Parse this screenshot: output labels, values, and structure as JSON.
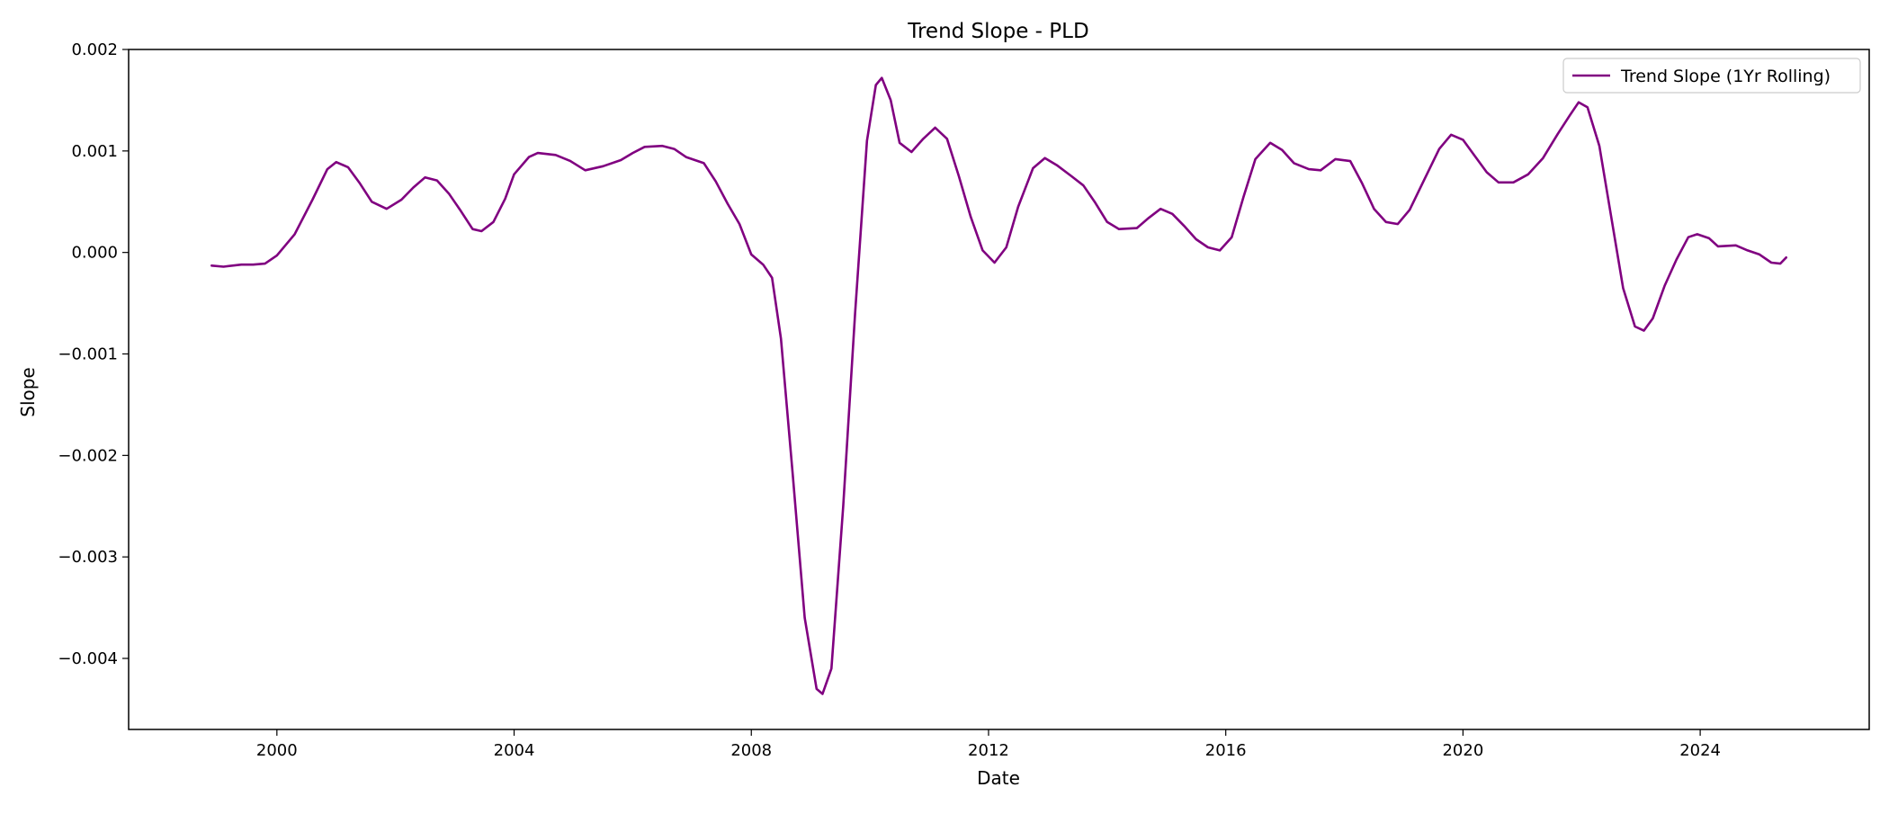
{
  "chart_data": {
    "type": "line",
    "title": "Trend Slope - PLD",
    "xlabel": "Date",
    "ylabel": "Slope",
    "xlim": [
      1997.5,
      2026.85
    ],
    "ylim": [
      -0.0047,
      0.002
    ],
    "x_ticks": [
      2000,
      2004,
      2008,
      2012,
      2016,
      2020,
      2024
    ],
    "x_tick_labels": [
      "2000",
      "2004",
      "2008",
      "2012",
      "2016",
      "2020",
      "2024"
    ],
    "y_ticks": [
      0.002,
      0.001,
      0.0,
      -0.001,
      -0.002,
      -0.003,
      -0.004
    ],
    "y_tick_labels": [
      "0.002",
      "0.001",
      "0.000",
      "−0.001",
      "−0.002",
      "−0.003",
      "−0.004"
    ],
    "grid": false,
    "legend_position": "top-right",
    "colors": {
      "line": "#800080",
      "axes": "#000000",
      "background": "#ffffff",
      "legend_border": "#cccccc"
    },
    "series": [
      {
        "name": "Trend Slope (1Yr Rolling)",
        "points": [
          [
            1998.9,
            -0.00013
          ],
          [
            1999.1,
            -0.00014
          ],
          [
            1999.4,
            -0.00012
          ],
          [
            1999.6,
            -0.00012
          ],
          [
            1999.8,
            -0.00011
          ],
          [
            2000.0,
            -3e-05
          ],
          [
            2000.3,
            0.00018
          ],
          [
            2000.6,
            0.00052
          ],
          [
            2000.85,
            0.00082
          ],
          [
            2001.0,
            0.00089
          ],
          [
            2001.2,
            0.00084
          ],
          [
            2001.4,
            0.00068
          ],
          [
            2001.6,
            0.0005
          ],
          [
            2001.85,
            0.00043
          ],
          [
            2002.1,
            0.00052
          ],
          [
            2002.3,
            0.00064
          ],
          [
            2002.5,
            0.00074
          ],
          [
            2002.7,
            0.00071
          ],
          [
            2002.9,
            0.00058
          ],
          [
            2003.1,
            0.00041
          ],
          [
            2003.3,
            0.00023
          ],
          [
            2003.45,
            0.00021
          ],
          [
            2003.65,
            0.0003
          ],
          [
            2003.85,
            0.00053
          ],
          [
            2004.0,
            0.00077
          ],
          [
            2004.25,
            0.00094
          ],
          [
            2004.4,
            0.00098
          ],
          [
            2004.7,
            0.00096
          ],
          [
            2004.95,
            0.0009
          ],
          [
            2005.2,
            0.00081
          ],
          [
            2005.5,
            0.00085
          ],
          [
            2005.8,
            0.00091
          ],
          [
            2006.0,
            0.00098
          ],
          [
            2006.2,
            0.00104
          ],
          [
            2006.5,
            0.00105
          ],
          [
            2006.7,
            0.00102
          ],
          [
            2006.9,
            0.00094
          ],
          [
            2007.2,
            0.00088
          ],
          [
            2007.4,
            0.0007
          ],
          [
            2007.6,
            0.00048
          ],
          [
            2007.8,
            0.00028
          ],
          [
            2008.0,
            -2e-05
          ],
          [
            2008.2,
            -0.00012
          ],
          [
            2008.35,
            -0.00025
          ],
          [
            2008.5,
            -0.00085
          ],
          [
            2008.7,
            -0.0022
          ],
          [
            2008.9,
            -0.0036
          ],
          [
            2009.1,
            -0.0043
          ],
          [
            2009.2,
            -0.00435
          ],
          [
            2009.35,
            -0.0041
          ],
          [
            2009.55,
            -0.0025
          ],
          [
            2009.75,
            -0.0006
          ],
          [
            2009.95,
            0.0011
          ],
          [
            2010.1,
            0.00165
          ],
          [
            2010.2,
            0.00172
          ],
          [
            2010.35,
            0.0015
          ],
          [
            2010.5,
            0.00108
          ],
          [
            2010.7,
            0.00099
          ],
          [
            2010.9,
            0.00112
          ],
          [
            2011.1,
            0.00123
          ],
          [
            2011.3,
            0.00112
          ],
          [
            2011.5,
            0.00075
          ],
          [
            2011.7,
            0.00035
          ],
          [
            2011.9,
            2e-05
          ],
          [
            2012.1,
            -0.0001
          ],
          [
            2012.3,
            5e-05
          ],
          [
            2012.5,
            0.00045
          ],
          [
            2012.75,
            0.00083
          ],
          [
            2012.95,
            0.00093
          ],
          [
            2013.15,
            0.00086
          ],
          [
            2013.4,
            0.00075
          ],
          [
            2013.6,
            0.00066
          ],
          [
            2013.8,
            0.00049
          ],
          [
            2014.0,
            0.0003
          ],
          [
            2014.2,
            0.00023
          ],
          [
            2014.5,
            0.00024
          ],
          [
            2014.7,
            0.00034
          ],
          [
            2014.9,
            0.00043
          ],
          [
            2015.1,
            0.00038
          ],
          [
            2015.3,
            0.00026
          ],
          [
            2015.5,
            0.00013
          ],
          [
            2015.7,
            5e-05
          ],
          [
            2015.9,
            2e-05
          ],
          [
            2016.1,
            0.00015
          ],
          [
            2016.3,
            0.00055
          ],
          [
            2016.5,
            0.00092
          ],
          [
            2016.75,
            0.00108
          ],
          [
            2016.95,
            0.00101
          ],
          [
            2017.15,
            0.00088
          ],
          [
            2017.4,
            0.00082
          ],
          [
            2017.6,
            0.00081
          ],
          [
            2017.85,
            0.00092
          ],
          [
            2018.1,
            0.0009
          ],
          [
            2018.3,
            0.00068
          ],
          [
            2018.5,
            0.00043
          ],
          [
            2018.7,
            0.0003
          ],
          [
            2018.9,
            0.00028
          ],
          [
            2019.1,
            0.00042
          ],
          [
            2019.35,
            0.00072
          ],
          [
            2019.6,
            0.00102
          ],
          [
            2019.8,
            0.00116
          ],
          [
            2020.0,
            0.00111
          ],
          [
            2020.2,
            0.00095
          ],
          [
            2020.4,
            0.00079
          ],
          [
            2020.6,
            0.00069
          ],
          [
            2020.85,
            0.00069
          ],
          [
            2021.1,
            0.00077
          ],
          [
            2021.35,
            0.00093
          ],
          [
            2021.6,
            0.00117
          ],
          [
            2021.8,
            0.00135
          ],
          [
            2021.95,
            0.00148
          ],
          [
            2022.1,
            0.00143
          ],
          [
            2022.3,
            0.00105
          ],
          [
            2022.5,
            0.00035
          ],
          [
            2022.7,
            -0.00035
          ],
          [
            2022.9,
            -0.00073
          ],
          [
            2023.05,
            -0.00077
          ],
          [
            2023.2,
            -0.00065
          ],
          [
            2023.4,
            -0.00033
          ],
          [
            2023.6,
            -7e-05
          ],
          [
            2023.8,
            0.00015
          ],
          [
            2023.95,
            0.00018
          ],
          [
            2024.15,
            0.00014
          ],
          [
            2024.3,
            6e-05
          ],
          [
            2024.6,
            7e-05
          ],
          [
            2024.8,
            2e-05
          ],
          [
            2025.0,
            -2e-05
          ],
          [
            2025.2,
            -0.0001
          ],
          [
            2025.35,
            -0.00011
          ],
          [
            2025.45,
            -5e-05
          ]
        ]
      }
    ]
  }
}
